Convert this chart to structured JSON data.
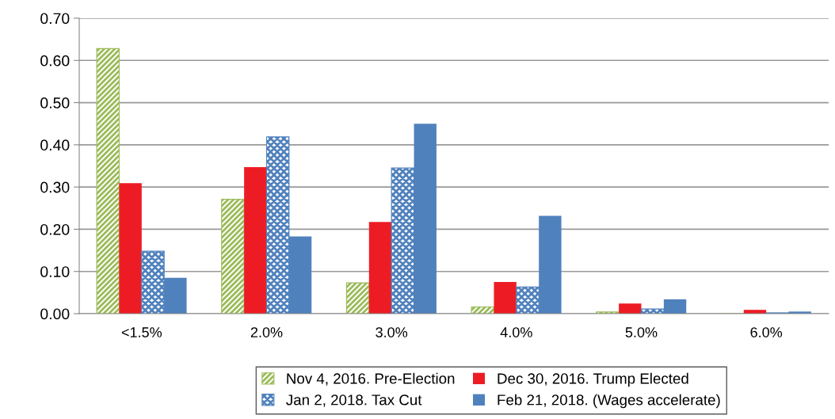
{
  "chart_data": {
    "type": "bar",
    "categories": [
      "<1.5%",
      "2.0%",
      "3.0%",
      "4.0%",
      "5.0%",
      "6.0%"
    ],
    "series": [
      {
        "name": "Nov 4, 2016. Pre-Election",
        "color": "#9bbb59",
        "values": [
          0.628,
          0.271,
          0.073,
          0.016,
          0.004,
          0
        ]
      },
      {
        "name": "Dec 30, 2016. Trump Elected",
        "color": "#ed1c24",
        "values": [
          0.309,
          0.347,
          0.217,
          0.075,
          0.024,
          0.009
        ]
      },
      {
        "name": "Jan 2, 2018. Tax Cut",
        "color": "#4f81bd",
        "values": [
          0.148,
          0.419,
          0.345,
          0.063,
          0.011,
          0.002
        ]
      },
      {
        "name": "Feb 21, 2018. (Wages accelerate)",
        "color": "#4f81bd",
        "values": [
          0.085,
          0.183,
          0.45,
          0.232,
          0.034,
          0.005
        ]
      }
    ],
    "ylim": [
      0,
      0.7
    ],
    "yticks": [
      {
        "value": 0,
        "label": "0.00"
      },
      {
        "value": 0.1,
        "label": "0.10"
      },
      {
        "value": 0.2,
        "label": "0.20"
      },
      {
        "value": 0.3,
        "label": "0.30"
      },
      {
        "value": 0.4,
        "label": "0.40"
      },
      {
        "value": 0.5,
        "label": "0.50"
      },
      {
        "value": 0.6,
        "label": "0.60"
      },
      {
        "value": 0.7,
        "label": "0.70"
      }
    ],
    "grid": "y",
    "legend": "bottom"
  }
}
